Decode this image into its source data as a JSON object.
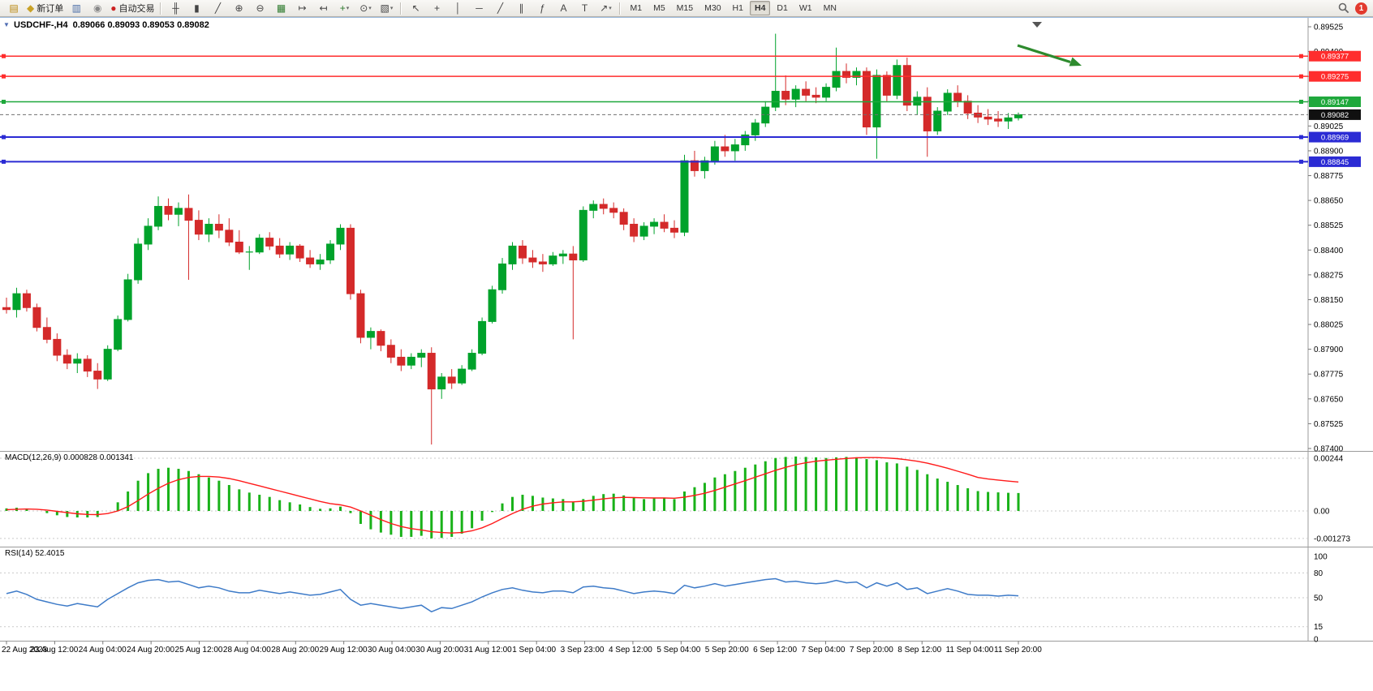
{
  "toolbar": {
    "groups": [
      [
        {
          "name": "new-chart",
          "glyph": "▤",
          "color": "#b8860b"
        },
        {
          "name": "new-order",
          "glyph": "◆",
          "color": "#c9a227",
          "label": "新订单"
        },
        {
          "name": "profiles",
          "glyph": "▥",
          "color": "#4a6da7"
        },
        {
          "name": "data-window",
          "glyph": "◉",
          "color": "#888888"
        },
        {
          "name": "autotrading",
          "glyph": "●",
          "color": "#cc2222",
          "label": "自动交易"
        }
      ],
      [
        {
          "name": "chart-bars",
          "glyph": "╫",
          "color": "#444444"
        },
        {
          "name": "chart-candles",
          "glyph": "▮",
          "color": "#444444"
        },
        {
          "name": "chart-line",
          "glyph": "╱",
          "color": "#444444"
        },
        {
          "name": "zoom-in",
          "glyph": "⊕",
          "color": "#444444"
        },
        {
          "name": "zoom-out",
          "glyph": "⊖",
          "color": "#444444"
        },
        {
          "name": "tile-windows",
          "glyph": "▦",
          "color": "#2c7a2c"
        },
        {
          "name": "auto-scroll",
          "glyph": "↦",
          "color": "#444444"
        },
        {
          "name": "chart-shift",
          "glyph": "↤",
          "color": "#444444"
        },
        {
          "name": "indicators",
          "glyph": "+",
          "color": "#2c7a2c",
          "dropdown": true
        },
        {
          "name": "periods",
          "glyph": "⊙",
          "color": "#444444",
          "dropdown": true
        },
        {
          "name": "templates",
          "glyph": "▧",
          "color": "#444444",
          "dropdown": true
        }
      ],
      [
        {
          "name": "cursor",
          "glyph": "↖",
          "color": "#444444"
        },
        {
          "name": "crosshair",
          "glyph": "+",
          "color": "#444444"
        },
        {
          "name": "vertical-line",
          "glyph": "│",
          "color": "#444444"
        },
        {
          "name": "horizontal-line",
          "glyph": "─",
          "color": "#444444"
        },
        {
          "name": "trendline",
          "glyph": "╱",
          "color": "#444444"
        },
        {
          "name": "channel",
          "glyph": "∥",
          "color": "#444444"
        },
        {
          "name": "fibonacci",
          "glyph": "ƒ",
          "color": "#444444"
        },
        {
          "name": "text",
          "glyph": "A",
          "color": "#444444"
        },
        {
          "name": "text-label",
          "glyph": "T",
          "color": "#444444"
        },
        {
          "name": "arrows-list",
          "glyph": "↗",
          "color": "#444444",
          "dropdown": true
        }
      ]
    ],
    "timeframes": [
      "M1",
      "M5",
      "M15",
      "M30",
      "H1",
      "H4",
      "D1",
      "W1",
      "MN"
    ],
    "active_timeframe": "H4",
    "notification_count": "1"
  },
  "chart_data": {
    "type": "candlestick",
    "title": "USDCHF-,H4",
    "ohlc_text": "0.89066 0.89093 0.89053 0.89082",
    "ohlc": {
      "open": 0.89066,
      "high": 0.89093,
      "low": 0.89053,
      "close": 0.89082
    },
    "price_axis_labels": [
      "0.89525",
      "0.89400",
      "0.89275",
      "0.89150",
      "0.89025",
      "0.88900",
      "0.88775",
      "0.88650",
      "0.88525",
      "0.88400",
      "0.88275",
      "0.88150",
      "0.88025",
      "0.87900",
      "0.87775",
      "0.87650",
      "0.87525",
      "0.87400"
    ],
    "time_labels": [
      "22 Aug 2023",
      "23 Aug 12:00",
      "24 Aug 04:00",
      "24 Aug 20:00",
      "25 Aug 12:00",
      "28 Aug 04:00",
      "28 Aug 20:00",
      "29 Aug 12:00",
      "30 Aug 04:00",
      "30 Aug 20:00",
      "31 Aug 12:00",
      "1 Sep 04:00",
      "3 Sep 23:00",
      "4 Sep 12:00",
      "5 Sep 04:00",
      "5 Sep 20:00",
      "6 Sep 12:00",
      "7 Sep 04:00",
      "7 Sep 20:00",
      "8 Sep 12:00",
      "11 Sep 04:00",
      "11 Sep 20:00"
    ],
    "hlines": [
      {
        "price": 0.89377,
        "label": "0.89377",
        "color": "#FF2D2D",
        "width": 1.5
      },
      {
        "price": 0.89275,
        "label": "0.89275",
        "color": "#FF2D2D",
        "width": 1.5
      },
      {
        "price": 0.89147,
        "label": "0.89147",
        "color": "#1FA83C",
        "width": 1.5
      },
      {
        "price": 0.88969,
        "label": "0.88969",
        "color": "#2B2BD4",
        "width": 2
      },
      {
        "price": 0.88845,
        "label": "0.88845",
        "color": "#2B2BD4",
        "width": 2
      }
    ],
    "bid": {
      "price": 0.89082,
      "label": "0.89082"
    },
    "arrow_color": "#2E8B2E",
    "colors": {
      "candle_up": "#00A22B",
      "candle_down": "#D42A2A",
      "macd_histogram": "#19B219",
      "macd_signal": "#FF1A1A",
      "rsi_line": "#3E7BC8",
      "bid_badge": "#101010"
    },
    "candles": [
      [
        0.8811,
        0.8816,
        0.8808,
        0.881
      ],
      [
        0.881,
        0.8821,
        0.8806,
        0.8818
      ],
      [
        0.8818,
        0.882,
        0.8809,
        0.8811
      ],
      [
        0.8811,
        0.8813,
        0.8799,
        0.8801
      ],
      [
        0.8801,
        0.8806,
        0.8793,
        0.8795
      ],
      [
        0.8795,
        0.8798,
        0.8784,
        0.8787
      ],
      [
        0.8787,
        0.879,
        0.878,
        0.8783
      ],
      [
        0.8783,
        0.8788,
        0.8778,
        0.8785
      ],
      [
        0.8785,
        0.8787,
        0.8776,
        0.8779
      ],
      [
        0.8779,
        0.8783,
        0.877,
        0.8775
      ],
      [
        0.8775,
        0.8792,
        0.8774,
        0.879
      ],
      [
        0.879,
        0.8807,
        0.8789,
        0.8805
      ],
      [
        0.8805,
        0.8828,
        0.8804,
        0.8825
      ],
      [
        0.8825,
        0.8846,
        0.8823,
        0.8843
      ],
      [
        0.8843,
        0.8856,
        0.884,
        0.8852
      ],
      [
        0.8852,
        0.8867,
        0.885,
        0.8862
      ],
      [
        0.8862,
        0.8866,
        0.8855,
        0.8858
      ],
      [
        0.8858,
        0.8864,
        0.8852,
        0.8861
      ],
      [
        0.8861,
        0.8868,
        0.8825,
        0.8855
      ],
      [
        0.8855,
        0.886,
        0.8845,
        0.8848
      ],
      [
        0.8848,
        0.8856,
        0.8844,
        0.8853
      ],
      [
        0.8853,
        0.8858,
        0.8846,
        0.885
      ],
      [
        0.885,
        0.8856,
        0.8842,
        0.8844
      ],
      [
        0.8844,
        0.885,
        0.8838,
        0.8839
      ],
      [
        0.8839,
        0.8842,
        0.883,
        0.8839
      ],
      [
        0.8839,
        0.8848,
        0.8838,
        0.8846
      ],
      [
        0.8846,
        0.8849,
        0.884,
        0.8842
      ],
      [
        0.8842,
        0.8846,
        0.8836,
        0.8838
      ],
      [
        0.8838,
        0.8844,
        0.8835,
        0.8842
      ],
      [
        0.8842,
        0.8843,
        0.8834,
        0.8836
      ],
      [
        0.8836,
        0.884,
        0.8831,
        0.8833
      ],
      [
        0.8833,
        0.8838,
        0.883,
        0.8835
      ],
      [
        0.8835,
        0.8845,
        0.8833,
        0.8843
      ],
      [
        0.8843,
        0.8853,
        0.884,
        0.8851
      ],
      [
        0.8851,
        0.8853,
        0.8815,
        0.8818
      ],
      [
        0.8818,
        0.882,
        0.8793,
        0.8796
      ],
      [
        0.8796,
        0.8801,
        0.879,
        0.8799
      ],
      [
        0.8799,
        0.88,
        0.8789,
        0.8792
      ],
      [
        0.8792,
        0.8795,
        0.8783,
        0.8786
      ],
      [
        0.8786,
        0.879,
        0.8779,
        0.8782
      ],
      [
        0.8782,
        0.8788,
        0.878,
        0.8786
      ],
      [
        0.8786,
        0.879,
        0.8781,
        0.8788
      ],
      [
        0.8788,
        0.8791,
        0.8742,
        0.877
      ],
      [
        0.877,
        0.8778,
        0.8765,
        0.8776
      ],
      [
        0.8776,
        0.878,
        0.877,
        0.8773
      ],
      [
        0.8773,
        0.8782,
        0.8772,
        0.878
      ],
      [
        0.878,
        0.879,
        0.8779,
        0.8788
      ],
      [
        0.8788,
        0.8806,
        0.8787,
        0.8804
      ],
      [
        0.8804,
        0.8822,
        0.8803,
        0.882
      ],
      [
        0.882,
        0.8836,
        0.8818,
        0.8833
      ],
      [
        0.8833,
        0.8844,
        0.883,
        0.8842
      ],
      [
        0.8842,
        0.8845,
        0.8833,
        0.8836
      ],
      [
        0.8836,
        0.884,
        0.8831,
        0.8834
      ],
      [
        0.8834,
        0.8838,
        0.8829,
        0.8833
      ],
      [
        0.8833,
        0.8839,
        0.8832,
        0.8837
      ],
      [
        0.8837,
        0.884,
        0.8833,
        0.8838
      ],
      [
        0.8838,
        0.8842,
        0.8795,
        0.8835
      ],
      [
        0.8835,
        0.8862,
        0.8834,
        0.886
      ],
      [
        0.886,
        0.8865,
        0.8856,
        0.8863
      ],
      [
        0.8863,
        0.8866,
        0.8858,
        0.8861
      ],
      [
        0.8861,
        0.8864,
        0.8856,
        0.8859
      ],
      [
        0.8859,
        0.8861,
        0.885,
        0.8853
      ],
      [
        0.8853,
        0.8856,
        0.8844,
        0.8847
      ],
      [
        0.8847,
        0.8854,
        0.8845,
        0.8852
      ],
      [
        0.8852,
        0.8856,
        0.8848,
        0.8854
      ],
      [
        0.8854,
        0.8858,
        0.8849,
        0.8851
      ],
      [
        0.8851,
        0.8855,
        0.8846,
        0.8849
      ],
      [
        0.8849,
        0.8888,
        0.8847,
        0.8885
      ],
      [
        0.8885,
        0.889,
        0.8877,
        0.888
      ],
      [
        0.888,
        0.8887,
        0.8876,
        0.8885
      ],
      [
        0.8885,
        0.8895,
        0.8883,
        0.8892
      ],
      [
        0.8892,
        0.8898,
        0.8887,
        0.889
      ],
      [
        0.889,
        0.8896,
        0.8885,
        0.8893
      ],
      [
        0.8893,
        0.89,
        0.889,
        0.8898
      ],
      [
        0.8898,
        0.8906,
        0.8895,
        0.8904
      ],
      [
        0.8904,
        0.8915,
        0.8902,
        0.8912
      ],
      [
        0.8912,
        0.8949,
        0.891,
        0.892
      ],
      [
        0.892,
        0.8928,
        0.8913,
        0.8916
      ],
      [
        0.8916,
        0.8923,
        0.8912,
        0.8921
      ],
      [
        0.8921,
        0.8925,
        0.8915,
        0.8918
      ],
      [
        0.8918,
        0.8922,
        0.8914,
        0.8917
      ],
      [
        0.8917,
        0.8924,
        0.8915,
        0.8922
      ],
      [
        0.8922,
        0.8942,
        0.892,
        0.893
      ],
      [
        0.893,
        0.8934,
        0.8924,
        0.8927
      ],
      [
        0.8927,
        0.8932,
        0.8923,
        0.893
      ],
      [
        0.893,
        0.8932,
        0.8898,
        0.8902
      ],
      [
        0.8902,
        0.8931,
        0.8886,
        0.8928
      ],
      [
        0.8928,
        0.893,
        0.8915,
        0.8918
      ],
      [
        0.8918,
        0.8936,
        0.8916,
        0.8933
      ],
      [
        0.8933,
        0.8937,
        0.891,
        0.8913
      ],
      [
        0.8913,
        0.892,
        0.8908,
        0.8917
      ],
      [
        0.8917,
        0.8922,
        0.8887,
        0.89
      ],
      [
        0.89,
        0.8912,
        0.8898,
        0.891
      ],
      [
        0.891,
        0.8921,
        0.8908,
        0.8919
      ],
      [
        0.8919,
        0.8923,
        0.8912,
        0.8915
      ],
      [
        0.8915,
        0.8918,
        0.8906,
        0.8909
      ],
      [
        0.8909,
        0.8913,
        0.8904,
        0.8907
      ],
      [
        0.8907,
        0.8911,
        0.8903,
        0.8906
      ],
      [
        0.8906,
        0.891,
        0.8902,
        0.8905
      ],
      [
        0.8905,
        0.8909,
        0.8901,
        0.89066
      ],
      [
        0.89066,
        0.89093,
        0.89053,
        0.89082
      ]
    ],
    "indicators": {
      "macd": {
        "label": "MACD(12,26,9) 0.000828 0.001341",
        "axis": [
          {
            "v": 0.00244,
            "t": "0.00244"
          },
          {
            "v": 0,
            "t": "0.00"
          },
          {
            "v": -0.001273,
            "t": "-0.001273"
          }
        ],
        "histogram": [
          0.00012,
          0.00015,
          0.0001,
          0,
          -0.0001,
          -0.0002,
          -0.00028,
          -0.0003,
          -0.0003,
          -0.00028,
          0,
          0.0004,
          0.0009,
          0.0014,
          0.00175,
          0.00195,
          0.002,
          0.00195,
          0.00185,
          0.0017,
          0.00155,
          0.0014,
          0.0012,
          0.001,
          0.00085,
          0.00075,
          0.00065,
          0.0005,
          0.0004,
          0.0003,
          0.00018,
          0.0001,
          0.00012,
          0.0002,
          -0.0001,
          -0.0006,
          -0.00085,
          -0.001,
          -0.0011,
          -0.0012,
          -0.0012,
          -0.00115,
          -0.00127,
          -0.00125,
          -0.0012,
          -0.00105,
          -0.0008,
          -0.00045,
          -5e-05,
          0.00035,
          0.00065,
          0.00075,
          0.0007,
          0.00062,
          0.00058,
          0.00055,
          0.0004,
          0.00055,
          0.0007,
          0.00078,
          0.0008,
          0.00072,
          0.0006,
          0.00055,
          0.00058,
          0.0006,
          0.00055,
          0.0009,
          0.0011,
          0.0013,
          0.00155,
          0.0017,
          0.00185,
          0.002,
          0.00215,
          0.0023,
          0.00245,
          0.0025,
          0.00252,
          0.0025,
          0.00248,
          0.00245,
          0.00248,
          0.0025,
          0.00248,
          0.0024,
          0.00235,
          0.00225,
          0.0022,
          0.00205,
          0.0019,
          0.0017,
          0.0015,
          0.00135,
          0.0012,
          0.00105,
          0.00092,
          0.00088,
          0.00086,
          0.00084,
          0.00083
        ],
        "signal": [
          6e-05,
          8e-05,
          9e-05,
          8e-05,
          4e-05,
          -2e-05,
          -8e-05,
          -0.00013,
          -0.00016,
          -0.00017,
          -0.00012,
          0,
          0.0002,
          0.00048,
          0.00078,
          0.00105,
          0.00128,
          0.00145,
          0.00155,
          0.0016,
          0.0016,
          0.00157,
          0.0015,
          0.0014,
          0.00128,
          0.00116,
          0.00104,
          0.00092,
          0.0008,
          0.00068,
          0.00056,
          0.00044,
          0.00034,
          0.00028,
          0.00018,
          0,
          -0.0002,
          -0.0004,
          -0.00058,
          -0.00072,
          -0.00082,
          -0.00088,
          -0.00096,
          -0.001,
          -0.00102,
          -0.001,
          -0.00092,
          -0.00078,
          -0.00058,
          -0.00035,
          -0.00012,
          8e-05,
          0.00022,
          0.00032,
          0.00038,
          0.00042,
          0.00042,
          0.00045,
          0.0005,
          0.00056,
          0.00061,
          0.00063,
          0.00062,
          0.00061,
          0.0006,
          0.0006,
          0.00059,
          0.00064,
          0.00072,
          0.00082,
          0.00095,
          0.0011,
          0.00125,
          0.0014,
          0.00156,
          0.00172,
          0.00188,
          0.00202,
          0.00214,
          0.00223,
          0.0023,
          0.00235,
          0.00239,
          0.00243,
          0.00246,
          0.00247,
          0.00247,
          0.00245,
          0.00242,
          0.00237,
          0.0023,
          0.00221,
          0.0021,
          0.00198,
          0.00184,
          0.0017,
          0.00155,
          0.00148,
          0.00143,
          0.00138,
          0.00134
        ]
      },
      "rsi": {
        "label": "RSI(14) 52.4015",
        "axis": [
          {
            "v": 100,
            "t": "100"
          },
          {
            "v": 80,
            "t": "80"
          },
          {
            "v": 50,
            "t": "50"
          },
          {
            "v": 15,
            "t": "15"
          },
          {
            "v": 0,
            "t": "0"
          }
        ],
        "levels": [
          80,
          50,
          15
        ],
        "values": [
          55,
          58,
          54,
          48,
          45,
          42,
          40,
          43,
          41,
          39,
          48,
          55,
          62,
          68,
          71,
          72,
          69,
          70,
          66,
          62,
          64,
          62,
          58,
          56,
          56,
          59,
          57,
          55,
          57,
          55,
          53,
          54,
          57,
          60,
          48,
          41,
          43,
          41,
          39,
          37,
          39,
          41,
          33,
          38,
          37,
          41,
          45,
          51,
          56,
          60,
          62,
          59,
          57,
          56,
          58,
          58,
          56,
          63,
          64,
          62,
          61,
          58,
          55,
          57,
          58,
          57,
          55,
          65,
          62,
          64,
          67,
          64,
          66,
          68,
          70,
          72,
          73,
          69,
          70,
          68,
          67,
          68,
          71,
          68,
          69,
          62,
          68,
          64,
          68,
          60,
          62,
          55,
          58,
          61,
          58,
          54,
          53,
          53,
          52,
          53,
          52.4
        ]
      }
    }
  }
}
